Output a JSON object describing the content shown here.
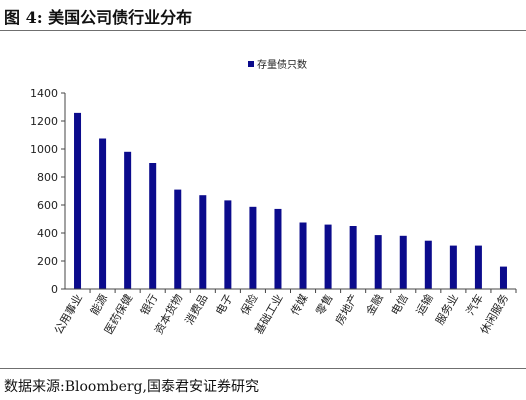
{
  "header": {
    "title": "图 4:  美国公司债行业分布"
  },
  "footer": {
    "source": "数据来源:Bloomberg,国泰君安证券研究"
  },
  "colors": {
    "bar": "#0b0b8c",
    "axis": "#444444",
    "text": "#222222"
  },
  "chart_data": {
    "type": "bar",
    "title": "",
    "xlabel": "",
    "ylabel": "",
    "ylim": [
      0,
      1400
    ],
    "yticks": [
      0,
      200,
      400,
      600,
      800,
      1000,
      1200,
      1400
    ],
    "grid": false,
    "legend_position": "top-center",
    "categories": [
      "公用事业",
      "能源",
      "医药保健",
      "银行",
      "资本货物",
      "消费品",
      "电子",
      "保险",
      "基础工业",
      "传媒",
      "零售",
      "房地产",
      "金融",
      "电信",
      "运输",
      "服务业",
      "汽车",
      "休闲服务"
    ],
    "series": [
      {
        "name": "存量债只数",
        "values": [
          1258,
          1075,
          980,
          900,
          710,
          670,
          633,
          587,
          572,
          475,
          460,
          450,
          385,
          380,
          345,
          310,
          310,
          160
        ]
      }
    ]
  }
}
